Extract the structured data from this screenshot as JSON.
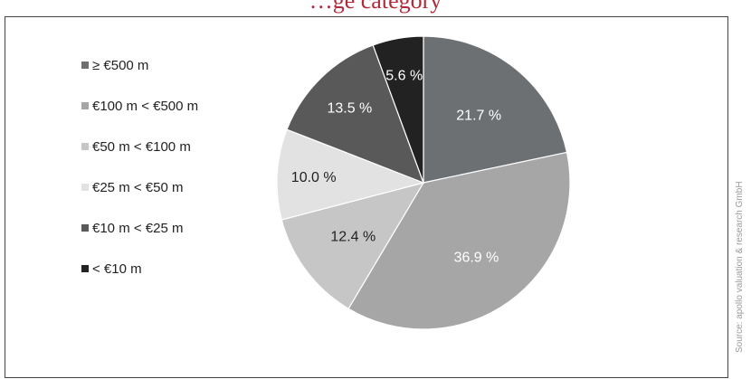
{
  "title_fragment": "…ge category",
  "source": "Source: apollo valuation & research GmbH",
  "chart_data": {
    "type": "pie",
    "title": "",
    "slices": [
      {
        "label": "≥ €500 m",
        "value": 21.7,
        "value_label": "21.7 %",
        "color": "#6c7073",
        "text_color": "#ffffff"
      },
      {
        "label": "€100 m < €500 m",
        "value": 36.9,
        "value_label": "36.9 %",
        "color": "#a6a6a6",
        "text_color": "#ffffff"
      },
      {
        "label": "€50 m < €100 m",
        "value": 12.4,
        "value_label": "12.4 %",
        "color": "#c6c6c6",
        "text_color": "#222222"
      },
      {
        "label": "€25 m < €50 m",
        "value": 10.0,
        "value_label": "10.0 %",
        "color": "#e2e2e2",
        "text_color": "#222222"
      },
      {
        "label": "€10 m < €25 m",
        "value": 13.5,
        "value_label": "13.5 %",
        "color": "#595959",
        "text_color": "#ffffff"
      },
      {
        "label": "< €10 m",
        "value": 5.6,
        "value_label": "5.6 %",
        "color": "#222222",
        "text_color": "#ffffff"
      }
    ],
    "legend_position": "left"
  }
}
